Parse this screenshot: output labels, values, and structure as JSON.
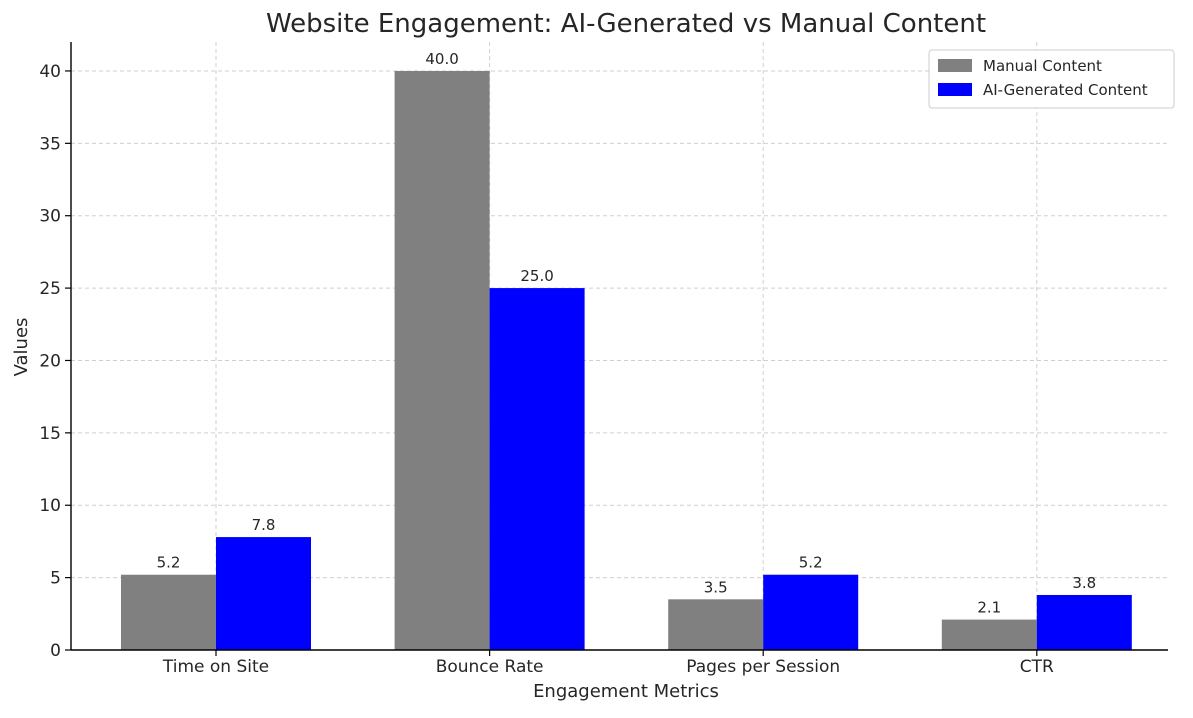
{
  "chart_data": {
    "type": "bar",
    "title": "Website Engagement: AI-Generated vs Manual Content",
    "xlabel": "Engagement Metrics",
    "ylabel": "Values",
    "categories": [
      "Time on Site",
      "Bounce Rate",
      "Pages per Session",
      "CTR"
    ],
    "series": [
      {
        "name": "Manual Content",
        "values": [
          5.2,
          40.0,
          3.5,
          2.1
        ],
        "color": "#808080",
        "labels": [
          "5.2",
          "40.0",
          "3.5",
          "2.1"
        ]
      },
      {
        "name": "AI-Generated Content",
        "values": [
          7.8,
          25.0,
          5.2,
          3.8
        ],
        "color": "#0000ff",
        "labels": [
          "7.8",
          "25.0",
          "5.2",
          "3.8"
        ]
      }
    ],
    "ylim": [
      0,
      42
    ],
    "yticks": [
      0,
      5,
      10,
      15,
      20,
      25,
      30,
      35,
      40
    ],
    "grid": true,
    "legend": "top-right"
  }
}
